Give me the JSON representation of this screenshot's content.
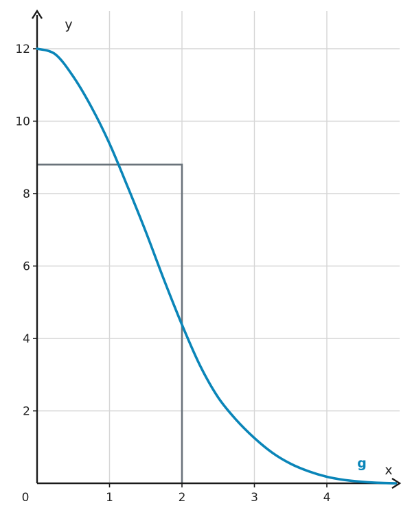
{
  "chart_data": {
    "type": "line",
    "title": "",
    "xlabel": "x",
    "ylabel": "y",
    "xlim": [
      0,
      4.95
    ],
    "ylim": [
      0,
      12.6
    ],
    "grid": true,
    "origin_label": "0",
    "x_ticks": [
      {
        "value": 1,
        "label": "1"
      },
      {
        "value": 2,
        "label": "2"
      },
      {
        "value": 3,
        "label": "3"
      },
      {
        "value": 4,
        "label": "4"
      }
    ],
    "y_ticks": [
      {
        "value": 2,
        "label": "2"
      },
      {
        "value": 4,
        "label": "4"
      },
      {
        "value": 6,
        "label": "6"
      },
      {
        "value": 8,
        "label": "8"
      },
      {
        "value": 10,
        "label": "10"
      },
      {
        "value": 12,
        "label": "12"
      }
    ],
    "series": [
      {
        "name": "g",
        "color": "#0a85b8",
        "x": [
          0,
          0.25,
          0.5,
          0.75,
          1,
          1.25,
          1.5,
          1.75,
          2,
          2.25,
          2.5,
          2.75,
          3,
          3.25,
          3.5,
          3.75,
          4,
          4.25,
          4.5,
          4.75,
          4.95
        ],
        "y": [
          12,
          11.85,
          11.23,
          10.39,
          9.38,
          8.19,
          6.95,
          5.63,
          4.38,
          3.25,
          2.37,
          1.75,
          1.25,
          0.84,
          0.54,
          0.33,
          0.18,
          0.09,
          0.04,
          0.01,
          0
        ]
      }
    ],
    "rectangle": {
      "x_from": 0,
      "x_to": 2,
      "y_from": 0,
      "y_to": 8.8,
      "color": "#6a737b"
    }
  }
}
